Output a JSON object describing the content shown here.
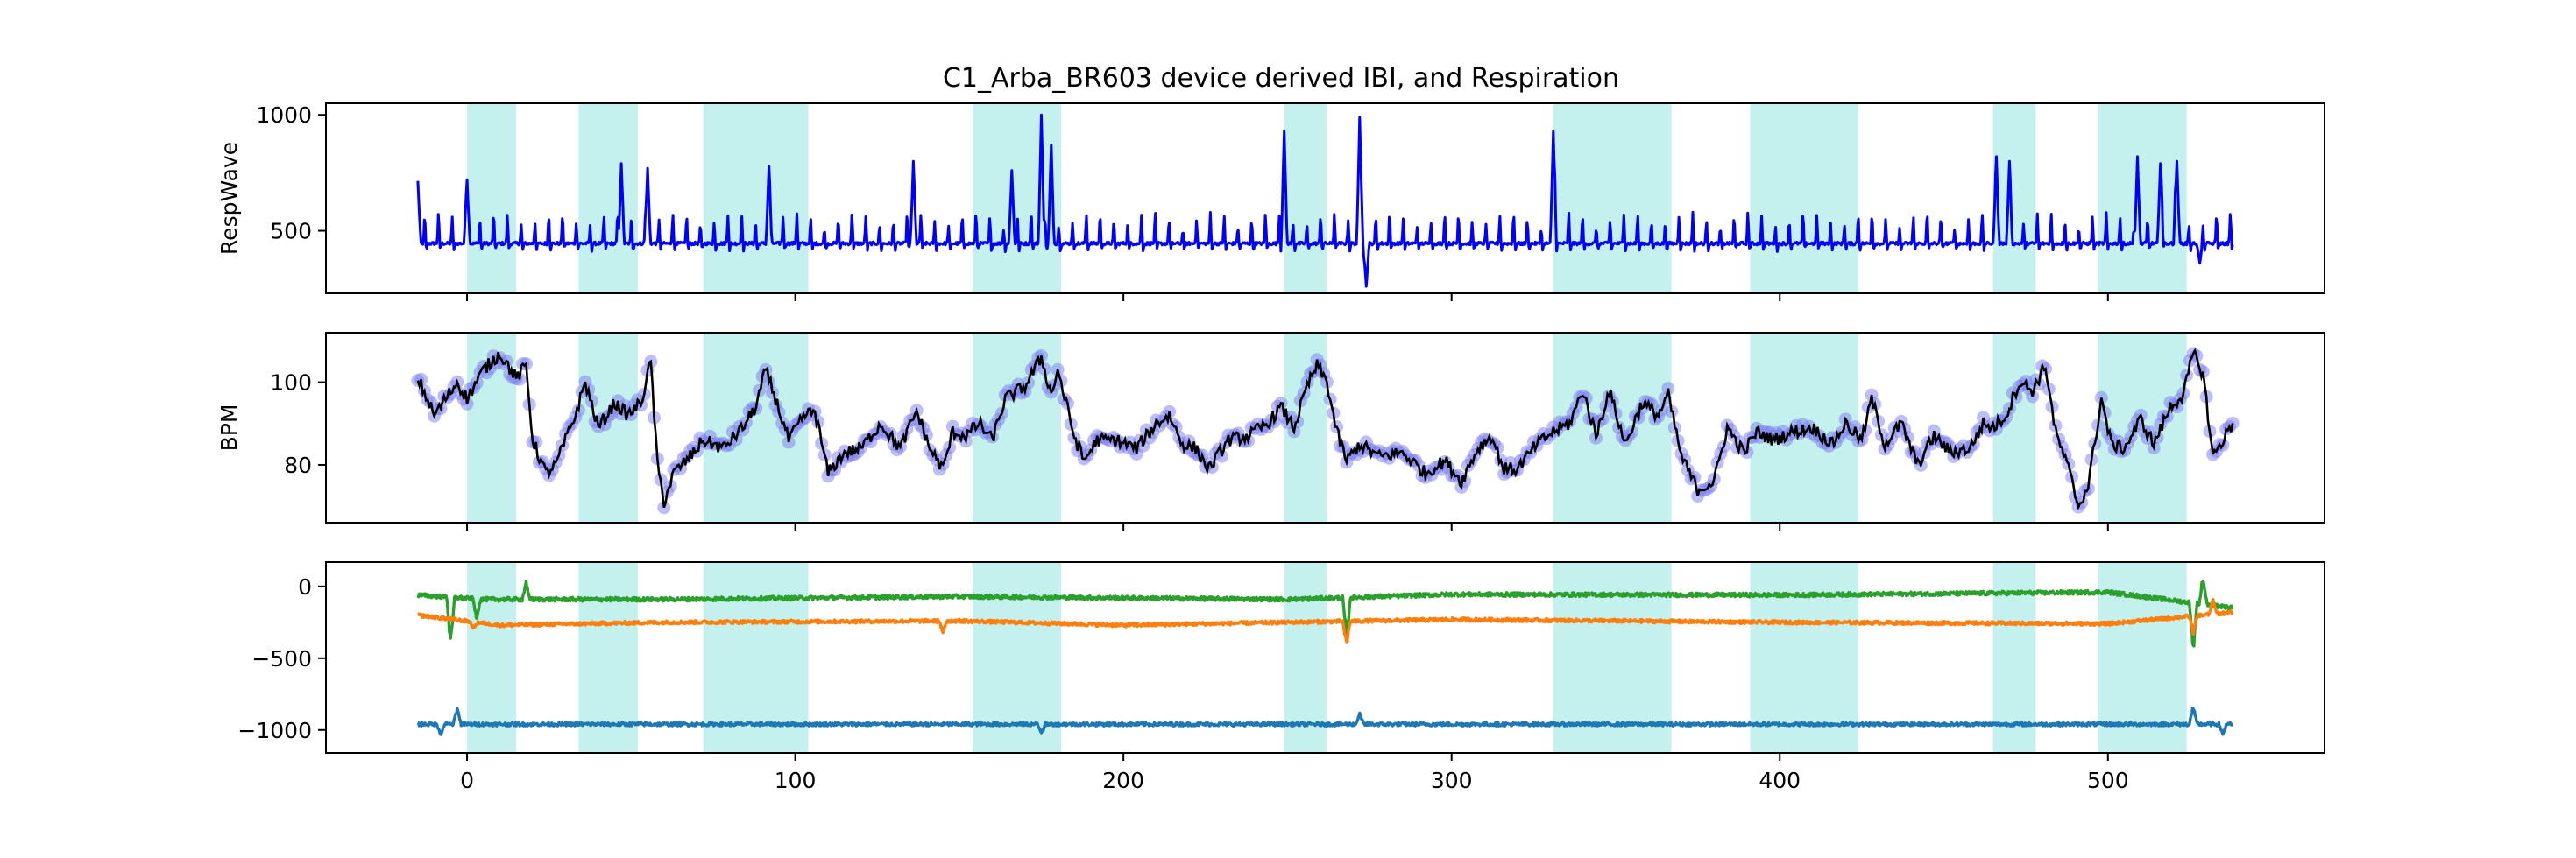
{
  "chart_data": {
    "title": "C1_Arba_BR603 device derived IBI, and Respiration",
    "xlim": [
      -43,
      566
    ],
    "x_ticks": [
      0,
      100,
      200,
      300,
      400,
      500
    ],
    "x_tick_labels": [
      "0",
      "100",
      "200",
      "300",
      "400",
      "500"
    ],
    "shaded_intervals": [
      [
        0,
        15
      ],
      [
        34,
        52
      ],
      [
        72,
        104
      ],
      [
        154,
        181
      ],
      [
        249,
        262
      ],
      [
        331,
        367
      ],
      [
        391,
        424
      ],
      [
        465,
        478
      ],
      [
        497,
        524
      ]
    ],
    "shade_color": "#c4f0ee",
    "panels": [
      {
        "type": "line",
        "ylabel": "RespWave",
        "ylim": [
          230,
          1050
        ],
        "y_ticks": [
          500,
          1000
        ],
        "y_tick_labels": [
          "500",
          "1000"
        ],
        "series": [
          {
            "color": "#0000ff",
            "x_range": [
              -15,
              538
            ],
            "baseline": 470,
            "peak_spacing": 4.2,
            "peak_height": 95,
            "events": [
              {
                "x": 175,
                "v": 1000
              },
              {
                "x": 272,
                "v": 990
              },
              {
                "x": 274,
                "v": 260
              },
              {
                "x": 249,
                "v": 930
              },
              {
                "x": 331,
                "v": 930
              },
              {
                "x": 47,
                "v": 790
              },
              {
                "x": 55,
                "v": 770
              },
              {
                "x": 92,
                "v": 780
              },
              {
                "x": 136,
                "v": 800
              },
              {
                "x": 178,
                "v": 870
              },
              {
                "x": 166,
                "v": 760
              },
              {
                "x": 466,
                "v": 820
              },
              {
                "x": 470,
                "v": 800
              },
              {
                "x": 509,
                "v": 820
              },
              {
                "x": 516,
                "v": 790
              },
              {
                "x": 521,
                "v": 800
              },
              {
                "x": -15,
                "v": 715
              },
              {
                "x": 0,
                "v": 720
              },
              {
                "x": 528,
                "v": 360
              }
            ]
          }
        ]
      },
      {
        "type": "line+scatter",
        "ylabel": "BPM",
        "ylim": [
          66,
          112
        ],
        "y_ticks": [
          80,
          100
        ],
        "y_tick_labels": [
          "80",
          "100"
        ],
        "line_color": "#000000",
        "marker_color": "#7b7bf0",
        "marker_alpha": 0.5,
        "x_range": [
          -15,
          538
        ],
        "anchors": [
          [
            -15,
            101
          ],
          [
            -10,
            92
          ],
          [
            -3,
            100
          ],
          [
            0,
            96
          ],
          [
            5,
            103
          ],
          [
            10,
            107
          ],
          [
            15,
            101
          ],
          [
            18,
            104
          ],
          [
            20,
            86
          ],
          [
            24,
            78
          ],
          [
            27,
            80
          ],
          [
            33,
            92
          ],
          [
            36,
            100
          ],
          [
            40,
            89
          ],
          [
            45,
            95
          ],
          [
            49,
            92
          ],
          [
            53,
            95
          ],
          [
            56,
            105
          ],
          [
            58,
            80
          ],
          [
            60,
            71
          ],
          [
            63,
            78
          ],
          [
            68,
            82
          ],
          [
            72,
            86
          ],
          [
            78,
            84
          ],
          [
            84,
            89
          ],
          [
            88,
            94
          ],
          [
            91,
            103
          ],
          [
            94,
            96
          ],
          [
            98,
            86
          ],
          [
            103,
            92
          ],
          [
            106,
            93
          ],
          [
            110,
            78
          ],
          [
            115,
            83
          ],
          [
            120,
            84
          ],
          [
            126,
            90
          ],
          [
            132,
            84
          ],
          [
            137,
            93
          ],
          [
            141,
            84
          ],
          [
            145,
            79
          ],
          [
            148,
            88
          ],
          [
            152,
            87
          ],
          [
            156,
            90
          ],
          [
            160,
            86
          ],
          [
            164,
            96
          ],
          [
            170,
            99
          ],
          [
            175,
            106
          ],
          [
            178,
            97
          ],
          [
            180,
            103
          ],
          [
            185,
            87
          ],
          [
            188,
            81
          ],
          [
            192,
            86
          ],
          [
            198,
            86
          ],
          [
            204,
            84
          ],
          [
            210,
            90
          ],
          [
            214,
            92
          ],
          [
            218,
            85
          ],
          [
            222,
            84
          ],
          [
            226,
            79
          ],
          [
            232,
            86
          ],
          [
            238,
            87
          ],
          [
            244,
            90
          ],
          [
            248,
            94
          ],
          [
            252,
            89
          ],
          [
            256,
            99
          ],
          [
            259,
            104
          ],
          [
            262,
            100
          ],
          [
            265,
            88
          ],
          [
            268,
            81
          ],
          [
            272,
            85
          ],
          [
            278,
            82
          ],
          [
            285,
            83
          ],
          [
            292,
            78
          ],
          [
            298,
            81
          ],
          [
            303,
            76
          ],
          [
            308,
            84
          ],
          [
            312,
            87
          ],
          [
            316,
            79
          ],
          [
            320,
            79
          ],
          [
            326,
            85
          ],
          [
            331,
            88
          ],
          [
            336,
            90
          ],
          [
            340,
            98
          ],
          [
            344,
            87
          ],
          [
            348,
            98
          ],
          [
            353,
            85
          ],
          [
            358,
            95
          ],
          [
            363,
            92
          ],
          [
            366,
            97
          ],
          [
            370,
            82
          ],
          [
            375,
            74
          ],
          [
            380,
            76
          ],
          [
            384,
            89
          ],
          [
            389,
            83
          ],
          [
            393,
            88
          ],
          [
            398,
            86
          ],
          [
            404,
            88
          ],
          [
            410,
            89
          ],
          [
            416,
            85
          ],
          [
            420,
            90
          ],
          [
            425,
            86
          ],
          [
            428,
            96
          ],
          [
            432,
            85
          ],
          [
            437,
            90
          ],
          [
            442,
            80
          ],
          [
            447,
            87
          ],
          [
            452,
            83
          ],
          [
            458,
            84
          ],
          [
            462,
            90
          ],
          [
            465,
            89
          ],
          [
            469,
            92
          ],
          [
            473,
            100
          ],
          [
            477,
            98
          ],
          [
            481,
            104
          ],
          [
            484,
            88
          ],
          [
            488,
            79
          ],
          [
            491,
            70
          ],
          [
            494,
            75
          ],
          [
            498,
            96
          ],
          [
            501,
            85
          ],
          [
            505,
            84
          ],
          [
            510,
            91
          ],
          [
            514,
            85
          ],
          [
            519,
            94
          ],
          [
            523,
            97
          ],
          [
            526,
            107
          ],
          [
            529,
            102
          ],
          [
            532,
            82
          ],
          [
            538,
            90
          ]
        ]
      },
      {
        "type": "line",
        "ylabel": "",
        "ylim": [
          -1160,
          170
        ],
        "y_ticks": [
          0,
          -500,
          -1000
        ],
        "y_tick_labels": [
          "0",
          "−500",
          "−1000"
        ],
        "series": [
          {
            "color": "#2ca02c",
            "x_range": [
              -15,
              538
            ],
            "base_points": [
              [
                -15,
                -60
              ],
              [
                5,
                -90
              ],
              [
                60,
                -90
              ],
              [
                150,
                -70
              ],
              [
                250,
                -90
              ],
              [
                300,
                -55
              ],
              [
                400,
                -60
              ],
              [
                500,
                -40
              ],
              [
                538,
                -150
              ]
            ],
            "noise": 14,
            "events": [
              [
                -5,
                -450
              ],
              [
                18,
                40
              ],
              [
                268,
                -380
              ],
              [
                526,
                -480
              ],
              [
                529,
                100
              ],
              [
                3,
                -250
              ]
            ]
          },
          {
            "color": "#ff7f0e",
            "x_range": [
              -15,
              538
            ],
            "base_points": [
              [
                -15,
                -200
              ],
              [
                10,
                -270
              ],
              [
                60,
                -250
              ],
              [
                150,
                -240
              ],
              [
                200,
                -270
              ],
              [
                300,
                -230
              ],
              [
                400,
                -250
              ],
              [
                500,
                -260
              ],
              [
                538,
                -180
              ]
            ],
            "noise": 12,
            "events": [
              [
                268,
                -420
              ],
              [
                145,
                -330
              ],
              [
                526,
                -350
              ],
              [
                532,
                -80
              ],
              [
                2,
                -300
              ]
            ]
          },
          {
            "color": "#1f77b4",
            "x_range": [
              -15,
              538
            ],
            "base_points": [
              [
                -15,
                -960
              ],
              [
                538,
                -960
              ]
            ],
            "noise": 12,
            "events": [
              [
                -3,
                -830
              ],
              [
                -8,
                -1050
              ],
              [
                272,
                -880
              ],
              [
                175,
                -1040
              ],
              [
                526,
                -820
              ],
              [
                535,
                -1040
              ]
            ]
          }
        ]
      }
    ]
  }
}
